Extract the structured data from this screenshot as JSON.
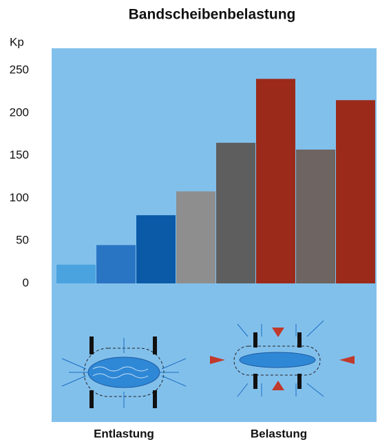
{
  "chart_data": {
    "type": "bar",
    "title": "Bandscheibenbelastung",
    "ylabel": "Kp",
    "categories": [
      null,
      null,
      null,
      null,
      null,
      null,
      null,
      null
    ],
    "values": [
      22,
      45,
      80,
      108,
      165,
      240,
      157,
      215
    ],
    "colors": [
      "#4aa3df",
      "#2a74c4",
      "#0a5aa8",
      "#8e8e8e",
      "#5e5e5e",
      "#9b2a1a",
      "#6e6461",
      "#9b2a1a"
    ],
    "ylim": [
      0,
      250
    ],
    "yticks": [
      0,
      50,
      100,
      150,
      200,
      250
    ],
    "grid": false,
    "annotations": [
      "Entlastung",
      "Belastung"
    ]
  }
}
